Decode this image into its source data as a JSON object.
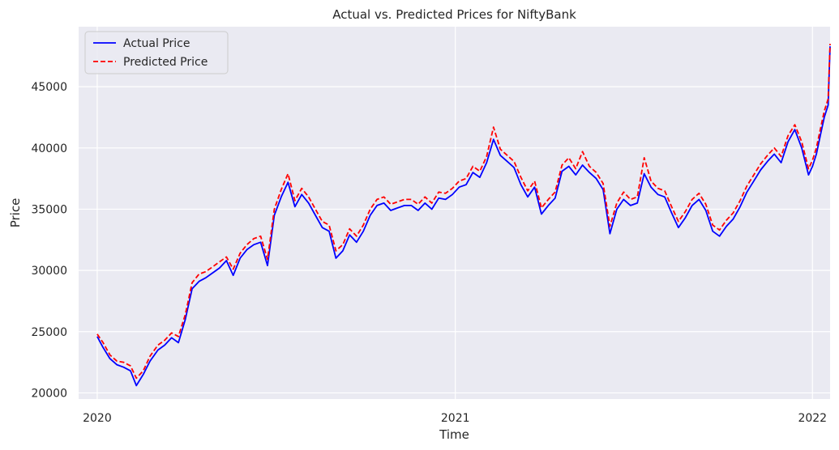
{
  "chart_data": {
    "type": "line",
    "title": "Actual vs. Predicted Prices for NiftyBank",
    "xlabel": "Time",
    "ylabel": "Price",
    "x_ticks": [
      "2020",
      "2021",
      "2022"
    ],
    "y_ticks": [
      20000,
      25000,
      30000,
      35000,
      40000,
      45000
    ],
    "xlim": [
      "2019-12-13",
      "2022-01-19"
    ],
    "ylim": [
      19500,
      49900
    ],
    "grid": true,
    "legend_position": "top-left",
    "background_color": "#eaeaf2",
    "grid_color": "#ffffff",
    "series": [
      {
        "name": "Actual Price",
        "color": "#0000ff",
        "style": "solid",
        "points": [
          [
            "2020-01-01",
            24600
          ],
          [
            "2020-01-07",
            23700
          ],
          [
            "2020-01-14",
            22800
          ],
          [
            "2020-01-21",
            22300
          ],
          [
            "2020-01-28",
            22100
          ],
          [
            "2020-02-04",
            21800
          ],
          [
            "2020-02-10",
            20600
          ],
          [
            "2020-02-17",
            21500
          ],
          [
            "2020-02-24",
            22600
          ],
          [
            "2020-03-03",
            23500
          ],
          [
            "2020-03-10",
            23900
          ],
          [
            "2020-03-17",
            24500
          ],
          [
            "2020-03-24",
            24100
          ],
          [
            "2020-03-31",
            26000
          ],
          [
            "2020-04-07",
            28500
          ],
          [
            "2020-04-14",
            29100
          ],
          [
            "2020-04-21",
            29400
          ],
          [
            "2020-04-28",
            29800
          ],
          [
            "2020-05-05",
            30200
          ],
          [
            "2020-05-12",
            30800
          ],
          [
            "2020-05-19",
            29600
          ],
          [
            "2020-05-26",
            31000
          ],
          [
            "2020-06-02",
            31700
          ],
          [
            "2020-06-09",
            32100
          ],
          [
            "2020-06-16",
            32300
          ],
          [
            "2020-06-23",
            30400
          ],
          [
            "2020-06-30",
            34500
          ],
          [
            "2020-07-07",
            36000
          ],
          [
            "2020-07-14",
            37200
          ],
          [
            "2020-07-21",
            35200
          ],
          [
            "2020-07-28",
            36200
          ],
          [
            "2020-08-04",
            35500
          ],
          [
            "2020-08-11",
            34500
          ],
          [
            "2020-08-18",
            33500
          ],
          [
            "2020-08-25",
            33200
          ],
          [
            "2020-09-01",
            31000
          ],
          [
            "2020-09-08",
            31600
          ],
          [
            "2020-09-15",
            32900
          ],
          [
            "2020-09-22",
            32300
          ],
          [
            "2020-09-29",
            33200
          ],
          [
            "2020-10-06",
            34500
          ],
          [
            "2020-10-13",
            35300
          ],
          [
            "2020-10-20",
            35500
          ],
          [
            "2020-10-27",
            34900
          ],
          [
            "2020-11-03",
            35100
          ],
          [
            "2020-11-10",
            35300
          ],
          [
            "2020-11-17",
            35300
          ],
          [
            "2020-11-24",
            34900
          ],
          [
            "2020-12-01",
            35500
          ],
          [
            "2020-12-08",
            35000
          ],
          [
            "2020-12-15",
            35900
          ],
          [
            "2020-12-22",
            35800
          ],
          [
            "2020-12-29",
            36200
          ],
          [
            "2021-01-05",
            36800
          ],
          [
            "2021-01-12",
            37000
          ],
          [
            "2021-01-19",
            38000
          ],
          [
            "2021-01-26",
            37600
          ],
          [
            "2021-02-02",
            38800
          ],
          [
            "2021-02-09",
            40700
          ],
          [
            "2021-02-16",
            39400
          ],
          [
            "2021-02-23",
            38900
          ],
          [
            "2021-03-02",
            38400
          ],
          [
            "2021-03-09",
            37000
          ],
          [
            "2021-03-16",
            36000
          ],
          [
            "2021-03-23",
            36800
          ],
          [
            "2021-03-30",
            34600
          ],
          [
            "2021-04-06",
            35300
          ],
          [
            "2021-04-13",
            35900
          ],
          [
            "2021-04-20",
            38100
          ],
          [
            "2021-04-27",
            38500
          ],
          [
            "2021-05-04",
            37800
          ],
          [
            "2021-05-11",
            38600
          ],
          [
            "2021-05-18",
            38000
          ],
          [
            "2021-05-25",
            37500
          ],
          [
            "2021-06-01",
            36600
          ],
          [
            "2021-06-08",
            33000
          ],
          [
            "2021-06-15",
            35000
          ],
          [
            "2021-06-22",
            35800
          ],
          [
            "2021-06-29",
            35300
          ],
          [
            "2021-07-06",
            35500
          ],
          [
            "2021-07-13",
            37900
          ],
          [
            "2021-07-20",
            36800
          ],
          [
            "2021-07-27",
            36200
          ],
          [
            "2021-08-03",
            36000
          ],
          [
            "2021-08-10",
            34700
          ],
          [
            "2021-08-17",
            33500
          ],
          [
            "2021-08-24",
            34300
          ],
          [
            "2021-08-31",
            35300
          ],
          [
            "2021-09-07",
            35800
          ],
          [
            "2021-09-14",
            34900
          ],
          [
            "2021-09-21",
            33200
          ],
          [
            "2021-09-28",
            32800
          ],
          [
            "2021-10-05",
            33600
          ],
          [
            "2021-10-12",
            34200
          ],
          [
            "2021-10-19",
            35200
          ],
          [
            "2021-10-26",
            36400
          ],
          [
            "2021-11-02",
            37300
          ],
          [
            "2021-11-09",
            38200
          ],
          [
            "2021-11-16",
            38900
          ],
          [
            "2021-11-23",
            39500
          ],
          [
            "2021-11-30",
            38800
          ],
          [
            "2021-12-07",
            40500
          ],
          [
            "2021-12-14",
            41500
          ],
          [
            "2021-12-21",
            40000
          ],
          [
            "2021-12-28",
            37800
          ],
          [
            "2022-01-01",
            38500
          ],
          [
            "2022-01-05",
            39500
          ],
          [
            "2022-01-09",
            41000
          ],
          [
            "2022-01-13",
            42500
          ],
          [
            "2022-01-17",
            43500
          ],
          [
            "2022-01-19",
            48300
          ]
        ]
      },
      {
        "name": "Predicted Price",
        "color": "#ff0000",
        "style": "dashed",
        "points": [
          [
            "2020-01-01",
            24800
          ],
          [
            "2020-01-07",
            24100
          ],
          [
            "2020-01-14",
            23100
          ],
          [
            "2020-01-21",
            22600
          ],
          [
            "2020-01-28",
            22500
          ],
          [
            "2020-02-04",
            22200
          ],
          [
            "2020-02-10",
            21200
          ],
          [
            "2020-02-17",
            21800
          ],
          [
            "2020-02-24",
            23000
          ],
          [
            "2020-03-03",
            23900
          ],
          [
            "2020-03-10",
            24300
          ],
          [
            "2020-03-17",
            24900
          ],
          [
            "2020-03-24",
            24600
          ],
          [
            "2020-03-31",
            26400
          ],
          [
            "2020-04-07",
            29000
          ],
          [
            "2020-04-14",
            29700
          ],
          [
            "2020-04-21",
            29900
          ],
          [
            "2020-04-28",
            30300
          ],
          [
            "2020-05-05",
            30700
          ],
          [
            "2020-05-12",
            31100
          ],
          [
            "2020-05-19",
            30100
          ],
          [
            "2020-05-26",
            31400
          ],
          [
            "2020-06-02",
            32100
          ],
          [
            "2020-06-09",
            32600
          ],
          [
            "2020-06-16",
            32800
          ],
          [
            "2020-06-23",
            30900
          ],
          [
            "2020-06-30",
            35000
          ],
          [
            "2020-07-07",
            36600
          ],
          [
            "2020-07-14",
            37900
          ],
          [
            "2020-07-21",
            35700
          ],
          [
            "2020-07-28",
            36700
          ],
          [
            "2020-08-04",
            36000
          ],
          [
            "2020-08-11",
            35000
          ],
          [
            "2020-08-18",
            34000
          ],
          [
            "2020-08-25",
            33700
          ],
          [
            "2020-09-01",
            31600
          ],
          [
            "2020-09-08",
            32100
          ],
          [
            "2020-09-15",
            33400
          ],
          [
            "2020-09-22",
            32800
          ],
          [
            "2020-09-29",
            33700
          ],
          [
            "2020-10-06",
            35000
          ],
          [
            "2020-10-13",
            35800
          ],
          [
            "2020-10-20",
            36000
          ],
          [
            "2020-10-27",
            35400
          ],
          [
            "2020-11-03",
            35600
          ],
          [
            "2020-11-10",
            35800
          ],
          [
            "2020-11-17",
            35800
          ],
          [
            "2020-11-24",
            35400
          ],
          [
            "2020-12-01",
            36000
          ],
          [
            "2020-12-08",
            35500
          ],
          [
            "2020-12-15",
            36400
          ],
          [
            "2020-12-22",
            36300
          ],
          [
            "2020-12-29",
            36700
          ],
          [
            "2021-01-05",
            37300
          ],
          [
            "2021-01-12",
            37500
          ],
          [
            "2021-01-19",
            38500
          ],
          [
            "2021-01-26",
            38100
          ],
          [
            "2021-02-02",
            39300
          ],
          [
            "2021-02-09",
            41700
          ],
          [
            "2021-02-16",
            39900
          ],
          [
            "2021-02-23",
            39400
          ],
          [
            "2021-03-02",
            38900
          ],
          [
            "2021-03-09",
            37600
          ],
          [
            "2021-03-16",
            36500
          ],
          [
            "2021-03-23",
            37300
          ],
          [
            "2021-03-30",
            35100
          ],
          [
            "2021-04-06",
            35800
          ],
          [
            "2021-04-13",
            36400
          ],
          [
            "2021-04-20",
            38600
          ],
          [
            "2021-04-27",
            39200
          ],
          [
            "2021-05-04",
            38300
          ],
          [
            "2021-05-11",
            39700
          ],
          [
            "2021-05-18",
            38500
          ],
          [
            "2021-05-25",
            38000
          ],
          [
            "2021-06-01",
            37100
          ],
          [
            "2021-06-08",
            33600
          ],
          [
            "2021-06-15",
            35500
          ],
          [
            "2021-06-22",
            36400
          ],
          [
            "2021-06-29",
            35800
          ],
          [
            "2021-07-06",
            36000
          ],
          [
            "2021-07-13",
            39200
          ],
          [
            "2021-07-20",
            37300
          ],
          [
            "2021-07-27",
            36700
          ],
          [
            "2021-08-03",
            36500
          ],
          [
            "2021-08-10",
            35200
          ],
          [
            "2021-08-17",
            34000
          ],
          [
            "2021-08-24",
            34800
          ],
          [
            "2021-08-31",
            35800
          ],
          [
            "2021-09-07",
            36300
          ],
          [
            "2021-09-14",
            35400
          ],
          [
            "2021-09-21",
            33700
          ],
          [
            "2021-09-28",
            33300
          ],
          [
            "2021-10-05",
            34100
          ],
          [
            "2021-10-12",
            34700
          ],
          [
            "2021-10-19",
            35700
          ],
          [
            "2021-10-26",
            36900
          ],
          [
            "2021-11-02",
            37800
          ],
          [
            "2021-11-09",
            38700
          ],
          [
            "2021-11-16",
            39400
          ],
          [
            "2021-11-23",
            40000
          ],
          [
            "2021-11-30",
            39300
          ],
          [
            "2021-12-07",
            41000
          ],
          [
            "2021-12-14",
            41900
          ],
          [
            "2021-12-21",
            40500
          ],
          [
            "2021-12-28",
            38300
          ],
          [
            "2022-01-01",
            39000
          ],
          [
            "2022-01-05",
            40000
          ],
          [
            "2022-01-09",
            41500
          ],
          [
            "2022-01-13",
            43000
          ],
          [
            "2022-01-17",
            44000
          ],
          [
            "2022-01-19",
            48500
          ]
        ]
      }
    ]
  }
}
